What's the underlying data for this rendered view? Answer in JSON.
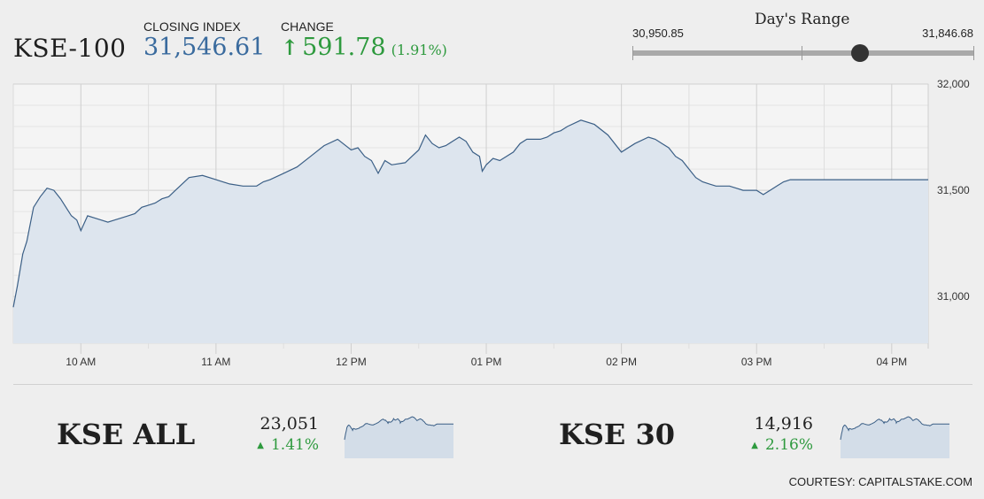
{
  "header": {
    "index_name": "KSE-100",
    "closing_label": "CLOSING INDEX",
    "closing_value": "31,546.61",
    "change_label": "CHANGE",
    "change_value": "591.78",
    "change_pct": "(1.91%)",
    "arrow_icon": "up-arrow-icon",
    "up_color": "#2e9a3e",
    "value_color": "#3a6b9e"
  },
  "day_range": {
    "title": "Day's Range",
    "min": "30,950.85",
    "max": "31,846.68",
    "current": 31546.61
  },
  "chart_data": {
    "type": "area",
    "ylim": [
      30780,
      32000
    ],
    "y_ticks": [
      31000,
      31500,
      32000
    ],
    "y_tick_labels": [
      "31,000",
      "31,500",
      "32,000"
    ],
    "x_tick_labels": [
      "10 AM",
      "11 AM",
      "12 PM",
      "01 PM",
      "02 PM",
      "03 PM",
      "04 PM"
    ],
    "x_range": [
      9.5,
      16.27
    ],
    "grid": true,
    "line_color": "#3b5f86",
    "fill_color": "#dde5ee",
    "series": [
      {
        "x": [
          9.5,
          9.53,
          9.57,
          9.6,
          9.65,
          9.7,
          9.75,
          9.8,
          9.85,
          9.9,
          9.93,
          9.97,
          10.0,
          10.05,
          10.1,
          10.15,
          10.2,
          10.25,
          10.3,
          10.35,
          10.4,
          10.45,
          10.5,
          10.55,
          10.6,
          10.65,
          10.7,
          10.75,
          10.8,
          10.9,
          11.0,
          11.1,
          11.2,
          11.3,
          11.35,
          11.4,
          11.5,
          11.6,
          11.7,
          11.8,
          11.9,
          12.0,
          12.05,
          12.1,
          12.15,
          12.2,
          12.25,
          12.3,
          12.4,
          12.45,
          12.5,
          12.55,
          12.6,
          12.65,
          12.7,
          12.75,
          12.8,
          12.85,
          12.9,
          12.95,
          12.97,
          13.0,
          13.05,
          13.1,
          13.2,
          13.25,
          13.3,
          13.4,
          13.45,
          13.5,
          13.55,
          13.6,
          13.7,
          13.8,
          13.9,
          14.0,
          14.1,
          14.2,
          14.25,
          14.3,
          14.35,
          14.4,
          14.45,
          14.5,
          14.55,
          14.6,
          14.65,
          14.7,
          14.8,
          14.85,
          14.9,
          15.0,
          15.05,
          15.1,
          15.15,
          15.2,
          15.25,
          15.3,
          15.35,
          15.4,
          15.45,
          15.5,
          15.6,
          15.7,
          16.0,
          16.27
        ],
        "values": [
          30950,
          31050,
          31200,
          31260,
          31420,
          31470,
          31510,
          31500,
          31460,
          31410,
          31380,
          31360,
          31310,
          31380,
          31370,
          31360,
          31350,
          31360,
          31370,
          31380,
          31390,
          31420,
          31430,
          31440,
          31460,
          31470,
          31500,
          31530,
          31560,
          31570,
          31550,
          31530,
          31520,
          31520,
          31540,
          31550,
          31580,
          31610,
          31660,
          31710,
          31740,
          31690,
          31700,
          31660,
          31640,
          31580,
          31640,
          31620,
          31630,
          31660,
          31690,
          31760,
          31720,
          31700,
          31710,
          31730,
          31750,
          31730,
          31680,
          31660,
          31590,
          31620,
          31650,
          31640,
          31680,
          31720,
          31740,
          31740,
          31750,
          31770,
          31780,
          31800,
          31830,
          31810,
          31760,
          31680,
          31720,
          31750,
          31740,
          31720,
          31700,
          31660,
          31640,
          31600,
          31560,
          31540,
          31530,
          31520,
          31520,
          31510,
          31500,
          31500,
          31480,
          31500,
          31520,
          31540,
          31550,
          31550,
          31550,
          31550,
          31550,
          31550,
          31550,
          31550,
          31550,
          31550
        ]
      }
    ]
  },
  "mini_cards": [
    {
      "name": "KSE ALL",
      "value": "23,051",
      "change": "1.41%",
      "icon": "up-triangle-icon"
    },
    {
      "name": "KSE 30",
      "value": "14,916",
      "change": "2.16%",
      "icon": "up-triangle-icon"
    }
  ],
  "footer": {
    "courtesy": "COURTESY: CAPITALSTAKE.COM"
  }
}
